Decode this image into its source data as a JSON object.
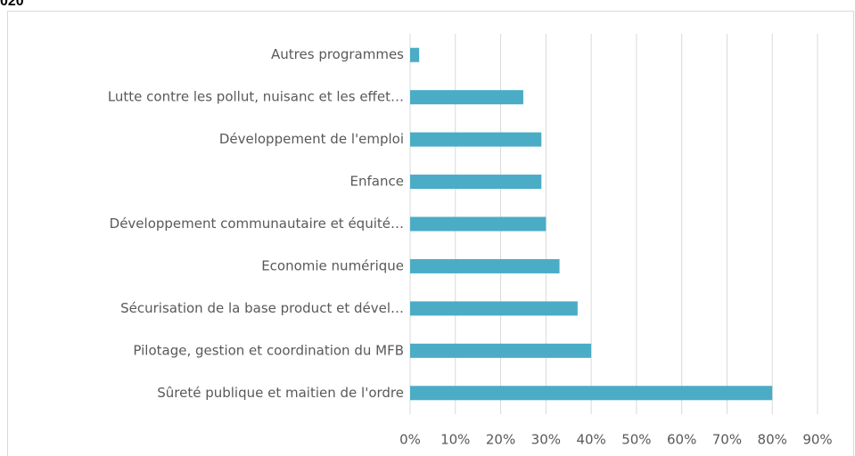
{
  "chart_data": {
    "type": "bar",
    "orientation": "horizontal",
    "title": "020",
    "categories": [
      "Autres programmes",
      "Lutte contre les pollut, nuisanc et les effet…",
      "Développement de l'emploi",
      "Enfance",
      "Développement communautaire et équité…",
      "Economie numérique",
      "Sécurisation de la base product et dével…",
      "Pilotage, gestion et coordination du MFB",
      "Sûreté publique et maitien de l'ordre"
    ],
    "values": [
      2,
      25,
      29,
      29,
      30,
      33,
      37,
      40,
      80
    ],
    "color": "#4bacc6",
    "xlim": [
      0,
      90
    ],
    "xticks": [
      {
        "value": 0,
        "label": "0%"
      },
      {
        "value": 10,
        "label": "10%"
      },
      {
        "value": 20,
        "label": "20%"
      },
      {
        "value": 30,
        "label": "30%"
      },
      {
        "value": 40,
        "label": "40%"
      },
      {
        "value": 50,
        "label": "50%"
      },
      {
        "value": 60,
        "label": "60%"
      },
      {
        "value": 70,
        "label": "70%"
      },
      {
        "value": 80,
        "label": "80%"
      },
      {
        "value": 90,
        "label": "90%"
      }
    ],
    "grid": true
  }
}
